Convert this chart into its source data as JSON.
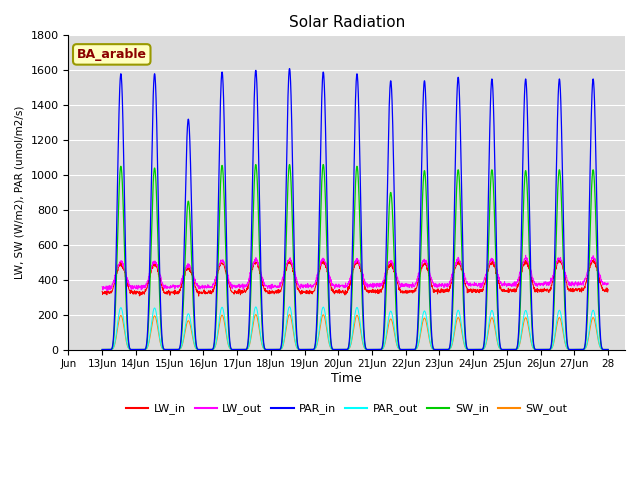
{
  "title": "Solar Radiation",
  "ylabel": "LW, SW (W/m2), PAR (umol/m2/s)",
  "xlabel": "Time",
  "site_label": "BA_arable",
  "ylim": [
    0,
    1800
  ],
  "series_colors": {
    "LW_in": "#ff0000",
    "LW_out": "#ff00ff",
    "PAR_in": "#0000ff",
    "PAR_out": "#00ffff",
    "SW_in": "#00cc00",
    "SW_out": "#ff8800"
  },
  "bg_color": "#dcdcdc",
  "fig_bg": "#ffffff",
  "x_tick_labels": [
    "Jun",
    "13Jun",
    "14Jun",
    "15Jun",
    "16Jun",
    "17Jun",
    "18Jun",
    "19Jun",
    "20Jun",
    "21Jun",
    "22Jun",
    "23Jun",
    "24Jun",
    "25Jun",
    "26Jun",
    "27Jun",
    "28"
  ],
  "par_in_peaks": [
    1580,
    1580,
    1320,
    1590,
    1600,
    1610,
    1590,
    1580,
    1540,
    1540,
    1560,
    1550,
    1550,
    1550,
    1550
  ],
  "sw_in_peaks": [
    1050,
    1040,
    850,
    1055,
    1060,
    1060,
    1060,
    1050,
    900,
    1025,
    1030,
    1030,
    1025,
    1030,
    1030
  ],
  "par_out_peaks": [
    240,
    238,
    205,
    242,
    244,
    245,
    243,
    241,
    220,
    221,
    225,
    224,
    224,
    225,
    225
  ],
  "sw_out_peaks": [
    195,
    193,
    165,
    197,
    200,
    200,
    199,
    196,
    175,
    180,
    183,
    182,
    182,
    183,
    183
  ],
  "lw_in_base": [
    325,
    325,
    325,
    328,
    330,
    330,
    330,
    332,
    332,
    333,
    335,
    337,
    338,
    340,
    342
  ],
  "lw_out_base": [
    355,
    357,
    358,
    360,
    362,
    362,
    363,
    365,
    366,
    368,
    370,
    372,
    373,
    375,
    377
  ],
  "lw_in_amp": [
    165,
    162,
    140,
    168,
    170,
    172,
    170,
    168,
    155,
    160,
    162,
    163,
    165,
    166,
    167
  ],
  "lw_out_amp": [
    148,
    145,
    125,
    150,
    152,
    154,
    152,
    150,
    138,
    142,
    144,
    145,
    147,
    148,
    149
  ]
}
